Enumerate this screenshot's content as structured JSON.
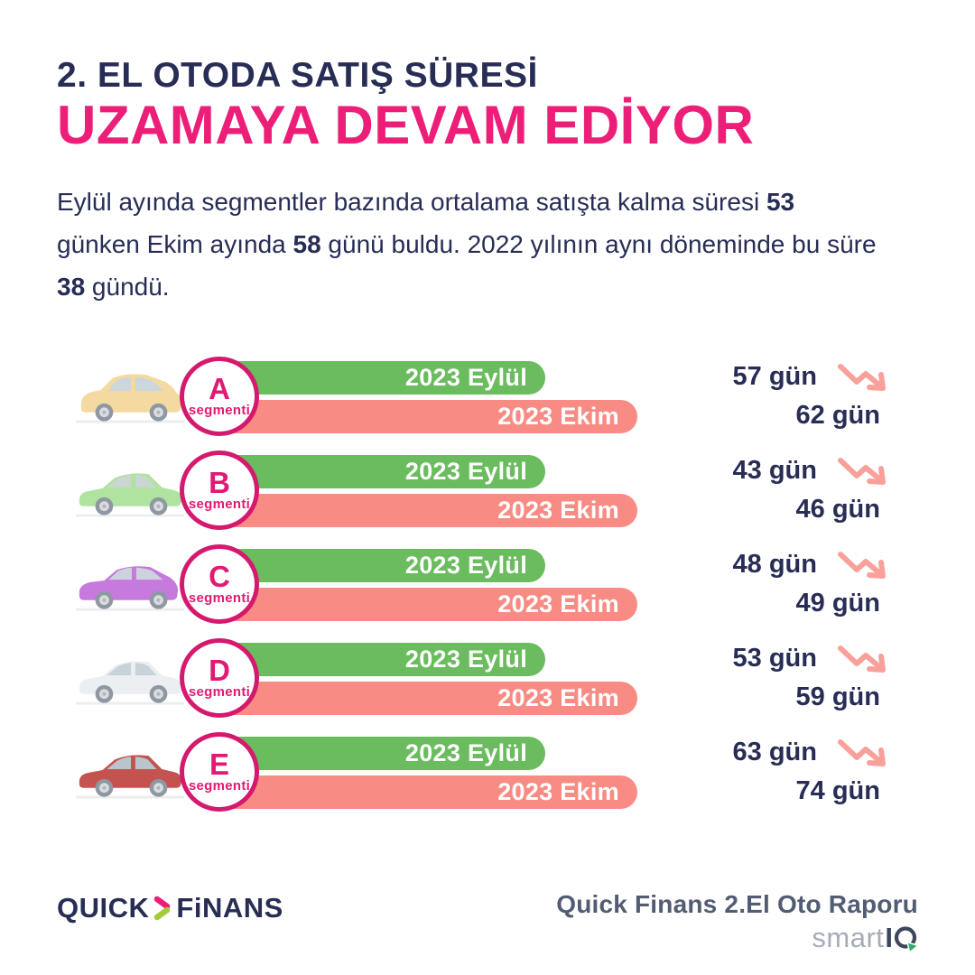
{
  "header": {
    "title": "2. EL OTODA SATIŞ SÜRESİ",
    "subtitle": "UZAMAYA DEVAM EDİYOR"
  },
  "intro": {
    "segments": [
      {
        "text": "Eylül ayında segmentler bazında ortalama satışta kalma süresi ",
        "bold": false
      },
      {
        "text": "53",
        "bold": true
      },
      {
        "text": " günken Ekim ayında ",
        "bold": false
      },
      {
        "text": "58",
        "bold": true
      },
      {
        "text": " günü buldu. 2022 yılının aynı döneminde bu süre ",
        "bold": false
      },
      {
        "text": "38",
        "bold": true
      },
      {
        "text": " gündü.",
        "bold": false
      }
    ]
  },
  "chart": {
    "labels": {
      "eylul": "2023 Eylül",
      "ekim": "2023 Ekim"
    },
    "segment_suffix": "segmenti",
    "rows": [
      {
        "segment": "A",
        "eylul": "57 gün",
        "ekim": "62 gün",
        "car": {
          "style": "mpv",
          "body": "#f4d9a1",
          "glass": "#ccd6dd"
        }
      },
      {
        "segment": "B",
        "eylul": "43 gün",
        "ekim": "46 gün",
        "car": {
          "style": "sedan",
          "body": "#b0e2a0",
          "glass": "#c9d6d2"
        }
      },
      {
        "segment": "C",
        "eylul": "48 gün",
        "ekim": "49 gün",
        "car": {
          "style": "hatch",
          "body": "#c67ade",
          "glass": "#cdd2de"
        }
      },
      {
        "segment": "D",
        "eylul": "53 gün",
        "ekim": "59 gün",
        "car": {
          "style": "sedan",
          "body": "#eceff2",
          "glass": "#c8d2d9"
        }
      },
      {
        "segment": "E",
        "eylul": "63 gün",
        "ekim": "74 gün",
        "car": {
          "style": "sedan",
          "body": "#c4534f",
          "glass": "#b9c4cc"
        }
      }
    ]
  },
  "chart_data": {
    "type": "bar",
    "categories": [
      "A segmenti",
      "B segmenti",
      "C segmenti",
      "D segmenti",
      "E segmenti"
    ],
    "series": [
      {
        "name": "2023 Eylül",
        "values": [
          57,
          43,
          48,
          53,
          63
        ]
      },
      {
        "name": "2023 Ekim",
        "values": [
          62,
          46,
          49,
          59,
          74
        ]
      }
    ],
    "unit": "gün",
    "title": "2. El Otoda Satış Süresi Uzamaya Devam Ediyor",
    "legend_position": "inside-bars",
    "grid": false,
    "layout_note": "bars drawn at uniform decorative length; values shown as right-side labels with downward trend arrows"
  },
  "footer": {
    "brand_left": {
      "word1": "QUICK",
      "word2": "FiNANS"
    },
    "report_title": "Quick Finans 2.El Oto Raporu",
    "brand_right": {
      "smart": "smart",
      "iq_i": "I"
    }
  },
  "colors": {
    "navy": "#272d55",
    "pink": "#ec1e78",
    "circle_pink": "#d4196e",
    "bar_green": "#6abc5e",
    "bar_salmon": "#f88c84",
    "arrow_salmon": "#f9a09a",
    "logo_green": "#a3cb39",
    "smartiq_gray": "#a6adb8",
    "smartiq_dark": "#3d475c",
    "smartiq_green": "#2fae6a"
  }
}
